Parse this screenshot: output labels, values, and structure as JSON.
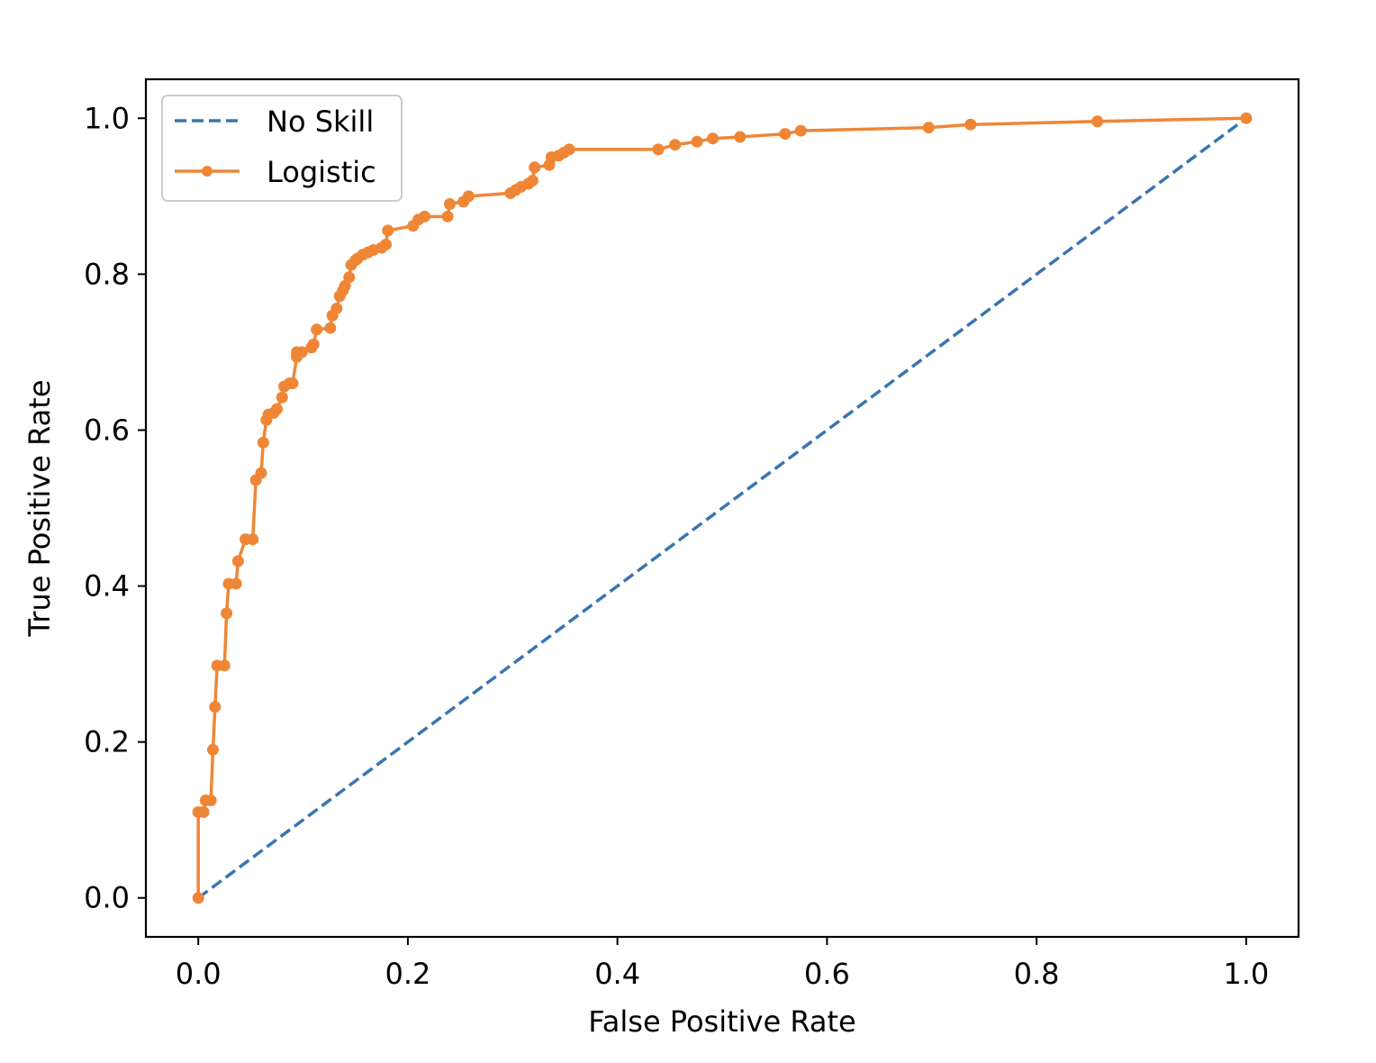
{
  "chart_data": {
    "type": "line",
    "title": "",
    "xlabel": "False Positive Rate",
    "ylabel": "True Positive Rate",
    "xlim": [
      -0.05,
      1.05
    ],
    "ylim": [
      -0.05,
      1.05
    ],
    "xticks": [
      0.0,
      0.2,
      0.4,
      0.6,
      0.8,
      1.0
    ],
    "yticks": [
      0.0,
      0.2,
      0.4,
      0.6,
      0.8,
      1.0
    ],
    "xtick_labels": [
      "0.0",
      "0.2",
      "0.4",
      "0.6",
      "0.8",
      "1.0"
    ],
    "ytick_labels": [
      "0.0",
      "0.2",
      "0.4",
      "0.6",
      "0.8",
      "1.0"
    ],
    "grid": false,
    "legend_position": "top-left",
    "series": [
      {
        "name": "No Skill",
        "style": "dashed",
        "marker": "none",
        "color": "#3a75b0",
        "x": [
          0.0,
          1.0
        ],
        "y": [
          0.0,
          1.0
        ]
      },
      {
        "name": "Logistic",
        "style": "solid",
        "marker": "dot",
        "color": "#ef8636",
        "x": [
          0.0,
          0.0,
          0.005,
          0.007,
          0.012,
          0.014,
          0.016,
          0.018,
          0.025,
          0.027,
          0.029,
          0.036,
          0.038,
          0.045,
          0.052,
          0.055,
          0.06,
          0.062,
          0.065,
          0.067,
          0.072,
          0.075,
          0.08,
          0.082,
          0.087,
          0.09,
          0.094,
          0.094,
          0.099,
          0.108,
          0.11,
          0.113,
          0.126,
          0.128,
          0.132,
          0.135,
          0.138,
          0.14,
          0.144,
          0.146,
          0.15,
          0.152,
          0.157,
          0.162,
          0.167,
          0.175,
          0.179,
          0.181,
          0.205,
          0.21,
          0.216,
          0.238,
          0.24,
          0.253,
          0.258,
          0.298,
          0.303,
          0.308,
          0.315,
          0.319,
          0.321,
          0.335,
          0.337,
          0.344,
          0.349,
          0.354,
          0.439,
          0.455,
          0.476,
          0.491,
          0.517,
          0.56,
          0.575,
          0.697,
          0.737,
          0.858,
          1.0
        ],
        "y": [
          0.0,
          0.11,
          0.11,
          0.125,
          0.125,
          0.19,
          0.245,
          0.298,
          0.298,
          0.365,
          0.403,
          0.403,
          0.432,
          0.46,
          0.46,
          0.536,
          0.545,
          0.584,
          0.613,
          0.62,
          0.622,
          0.627,
          0.642,
          0.656,
          0.66,
          0.66,
          0.694,
          0.7,
          0.7,
          0.706,
          0.71,
          0.729,
          0.731,
          0.747,
          0.756,
          0.772,
          0.779,
          0.785,
          0.796,
          0.812,
          0.818,
          0.82,
          0.825,
          0.828,
          0.831,
          0.834,
          0.838,
          0.856,
          0.862,
          0.87,
          0.874,
          0.874,
          0.89,
          0.893,
          0.9,
          0.904,
          0.908,
          0.912,
          0.916,
          0.92,
          0.937,
          0.94,
          0.95,
          0.952,
          0.956,
          0.96,
          0.96,
          0.966,
          0.97,
          0.974,
          0.976,
          0.98,
          0.984,
          0.988,
          0.992,
          0.996,
          1.0
        ]
      }
    ]
  }
}
